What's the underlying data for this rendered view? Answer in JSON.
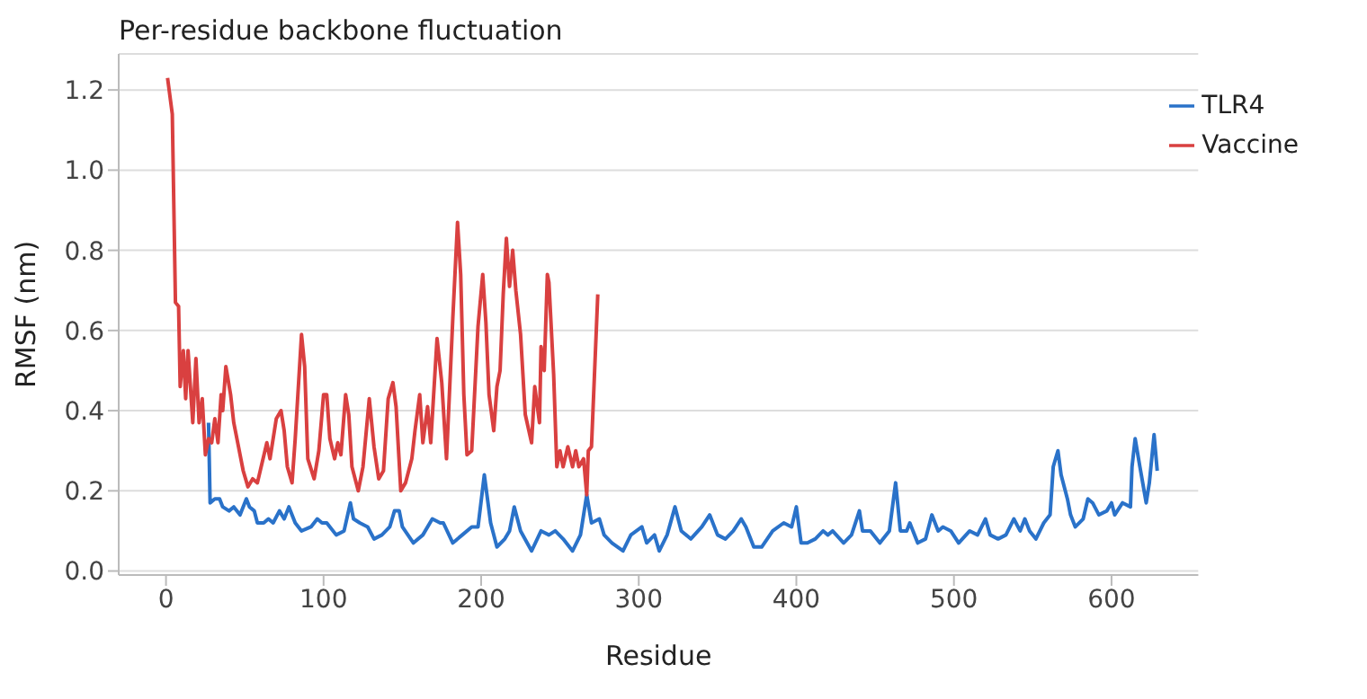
{
  "chart_data": {
    "type": "line",
    "title": "Per-residue backbone fluctuation",
    "xlabel": "Residue",
    "ylabel": "RMSF (nm)",
    "xlim": [
      -30,
      655
    ],
    "xticks": [
      0,
      100,
      200,
      300,
      400,
      500,
      600
    ],
    "ylim": [
      -0.01,
      1.29
    ],
    "yticks": [
      {
        "value": 0,
        "label": "0.0"
      },
      0.2,
      0.4,
      0.6,
      0.8,
      {
        "value": 1,
        "label": "1.0"
      },
      1.2
    ],
    "grid": "y",
    "legend": "top right",
    "line_style": "solid",
    "marker": "none",
    "series": [
      {
        "name": "TLR4",
        "color": "#2a72c9",
        "x": [
          27,
          28,
          31,
          34,
          36,
          40,
          43,
          47,
          51,
          53,
          56,
          58,
          62,
          65,
          68,
          72,
          75,
          78,
          82,
          86,
          92,
          96,
          99,
          102,
          108,
          113,
          117,
          119,
          123,
          128,
          132,
          137,
          142,
          145,
          148,
          150,
          157,
          163,
          169,
          174,
          176,
          182,
          188,
          194,
          198,
          202,
          206,
          210,
          215,
          218,
          221,
          225,
          232,
          238,
          243,
          247,
          252,
          258,
          263,
          267,
          270,
          275,
          278,
          283,
          290,
          295,
          302,
          305,
          310,
          313,
          318,
          323,
          327,
          333,
          340,
          345,
          350,
          355,
          360,
          365,
          368,
          373,
          378,
          385,
          392,
          397,
          400,
          403,
          407,
          412,
          417,
          420,
          423,
          430,
          435,
          440,
          442,
          447,
          453,
          459,
          463,
          466,
          470,
          472,
          477,
          482,
          486,
          490,
          493,
          498,
          503,
          510,
          515,
          520,
          523,
          528,
          533,
          538,
          542,
          545,
          548,
          552,
          557,
          561,
          563,
          566,
          568,
          572,
          574,
          577,
          582,
          585,
          588,
          592,
          597,
          600,
          602,
          607,
          612,
          613,
          615,
          618,
          622,
          624,
          627,
          629
        ],
        "values": [
          0.37,
          0.17,
          0.18,
          0.18,
          0.16,
          0.15,
          0.16,
          0.14,
          0.18,
          0.16,
          0.15,
          0.12,
          0.12,
          0.13,
          0.12,
          0.15,
          0.13,
          0.16,
          0.12,
          0.1,
          0.11,
          0.13,
          0.12,
          0.12,
          0.09,
          0.1,
          0.17,
          0.13,
          0.12,
          0.11,
          0.08,
          0.09,
          0.11,
          0.15,
          0.15,
          0.11,
          0.07,
          0.09,
          0.13,
          0.12,
          0.12,
          0.07,
          0.09,
          0.11,
          0.11,
          0.24,
          0.12,
          0.06,
          0.08,
          0.1,
          0.16,
          0.1,
          0.05,
          0.1,
          0.09,
          0.1,
          0.08,
          0.05,
          0.09,
          0.19,
          0.12,
          0.13,
          0.09,
          0.07,
          0.05,
          0.09,
          0.11,
          0.07,
          0.09,
          0.05,
          0.09,
          0.16,
          0.1,
          0.08,
          0.11,
          0.14,
          0.09,
          0.08,
          0.1,
          0.13,
          0.11,
          0.06,
          0.06,
          0.1,
          0.12,
          0.11,
          0.16,
          0.07,
          0.07,
          0.08,
          0.1,
          0.09,
          0.1,
          0.07,
          0.09,
          0.15,
          0.1,
          0.1,
          0.07,
          0.1,
          0.22,
          0.1,
          0.1,
          0.12,
          0.07,
          0.08,
          0.14,
          0.1,
          0.11,
          0.1,
          0.07,
          0.1,
          0.09,
          0.13,
          0.09,
          0.08,
          0.09,
          0.13,
          0.1,
          0.13,
          0.1,
          0.08,
          0.12,
          0.14,
          0.26,
          0.3,
          0.24,
          0.18,
          0.14,
          0.11,
          0.13,
          0.18,
          0.17,
          0.14,
          0.15,
          0.17,
          0.14,
          0.17,
          0.16,
          0.26,
          0.33,
          0.26,
          0.17,
          0.22,
          0.34,
          0.25
        ]
      },
      {
        "name": "Vaccine",
        "color": "#d94040",
        "x": [
          1,
          4,
          6,
          8,
          9,
          11,
          12.5,
          14,
          17,
          19,
          21,
          23,
          25,
          27,
          29,
          31,
          33,
          35,
          36,
          38,
          41,
          43,
          46,
          49,
          52,
          55,
          58,
          61,
          64,
          66,
          70,
          73,
          75,
          77,
          80,
          82,
          86,
          88,
          90,
          94,
          97,
          100,
          102,
          104,
          107,
          109,
          111,
          114,
          116,
          118,
          122,
          125,
          129,
          132,
          135,
          138,
          141,
          144,
          146,
          149,
          152,
          156,
          158,
          161,
          163,
          166,
          168,
          172,
          175,
          178,
          182,
          185,
          187,
          189,
          191,
          194,
          198,
          201,
          203,
          205,
          208,
          210,
          212,
          214,
          216,
          218,
          220,
          222,
          225,
          228,
          232,
          234,
          237,
          238,
          240,
          242,
          243,
          246,
          248,
          250,
          252,
          255,
          258,
          260,
          262,
          265,
          267,
          268,
          270,
          274
        ],
        "values": [
          1.23,
          1.14,
          0.67,
          0.66,
          0.46,
          0.55,
          0.43,
          0.55,
          0.37,
          0.53,
          0.37,
          0.43,
          0.29,
          0.33,
          0.32,
          0.38,
          0.32,
          0.44,
          0.4,
          0.51,
          0.44,
          0.37,
          0.31,
          0.25,
          0.21,
          0.23,
          0.22,
          0.27,
          0.32,
          0.28,
          0.38,
          0.4,
          0.35,
          0.26,
          0.22,
          0.33,
          0.59,
          0.51,
          0.28,
          0.23,
          0.3,
          0.44,
          0.44,
          0.33,
          0.28,
          0.32,
          0.29,
          0.44,
          0.39,
          0.26,
          0.2,
          0.26,
          0.43,
          0.31,
          0.23,
          0.25,
          0.43,
          0.47,
          0.41,
          0.2,
          0.22,
          0.28,
          0.35,
          0.44,
          0.32,
          0.41,
          0.32,
          0.58,
          0.47,
          0.28,
          0.63,
          0.87,
          0.74,
          0.44,
          0.29,
          0.3,
          0.61,
          0.74,
          0.62,
          0.44,
          0.35,
          0.46,
          0.5,
          0.69,
          0.83,
          0.71,
          0.8,
          0.7,
          0.59,
          0.39,
          0.32,
          0.46,
          0.37,
          0.56,
          0.5,
          0.74,
          0.72,
          0.49,
          0.26,
          0.3,
          0.26,
          0.31,
          0.26,
          0.3,
          0.26,
          0.28,
          0.19,
          0.3,
          0.31,
          0.69
        ]
      }
    ]
  }
}
